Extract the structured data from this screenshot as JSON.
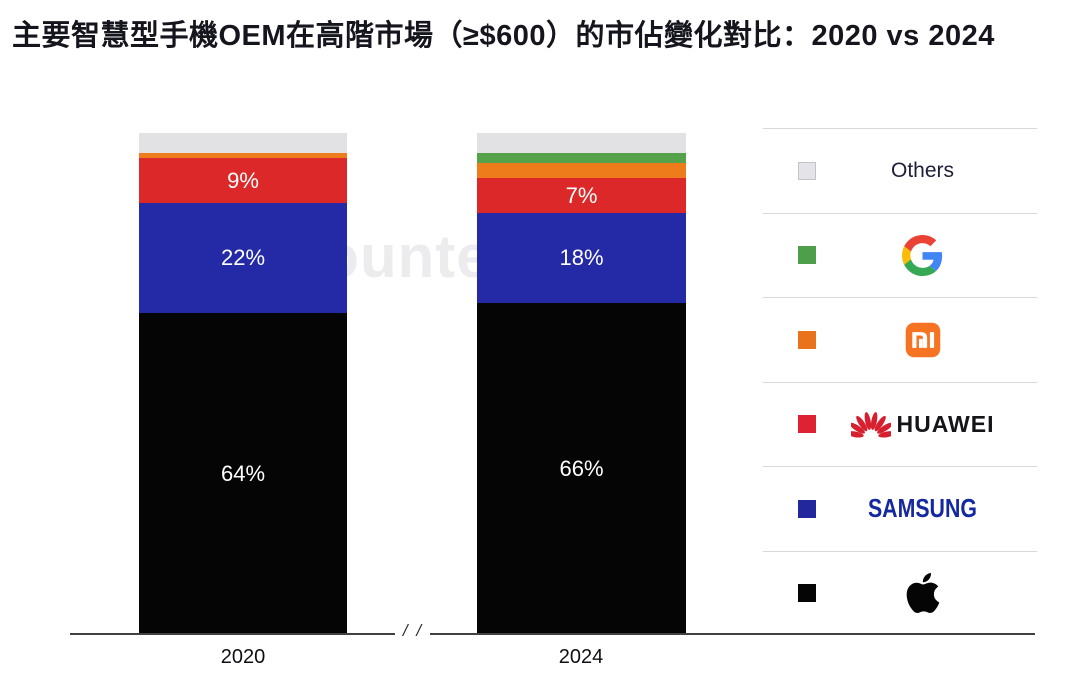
{
  "title": "主要智慧型手機OEM在高階市場（≥$600）的市佔變化對比：2020 vs 2024",
  "watermark": "Counterpoint",
  "axis": {
    "break_label": "/ /"
  },
  "chart_data": {
    "type": "bar",
    "stacked": true,
    "unit": "%",
    "title": "主要智慧型手機OEM在高階市場（≥$600）的市佔變化對比：2020 vs 2024",
    "categories": [
      "2020",
      "2024"
    ],
    "ylim": [
      0,
      100
    ],
    "grid": false,
    "legend_position": "right",
    "series_top_to_bottom": [
      {
        "name": "Others",
        "color": "#e2e2e4",
        "values": [
          4,
          4
        ],
        "labels": [
          "",
          ""
        ]
      },
      {
        "name": "Google",
        "color": "#56a24b",
        "values": [
          0,
          2
        ],
        "labels": [
          "",
          ""
        ]
      },
      {
        "name": "Xiaomi",
        "color": "#ee7c1b",
        "values": [
          1,
          3
        ],
        "labels": [
          "",
          ""
        ]
      },
      {
        "name": "Huawei",
        "color": "#dc2828",
        "values": [
          9,
          7
        ],
        "labels": [
          "9%",
          "7%"
        ]
      },
      {
        "name": "Samsung",
        "color": "#2429a5",
        "values": [
          22,
          18
        ],
        "labels": [
          "22%",
          "18%"
        ]
      },
      {
        "name": "Apple",
        "color": "#050505",
        "values": [
          64,
          66
        ],
        "labels": [
          "64%",
          "66%"
        ]
      }
    ]
  },
  "legend": {
    "items": [
      {
        "name": "Others",
        "swatch": "#e4e4e8",
        "label": "Others"
      },
      {
        "name": "Google",
        "swatch": "#4f9e4c",
        "label": "Google"
      },
      {
        "name": "Xiaomi",
        "swatch": "#e9721c",
        "label": "Xiaomi"
      },
      {
        "name": "Huawei",
        "swatch": "#dd2233",
        "label": "HUAWEI"
      },
      {
        "name": "Samsung",
        "swatch": "#23279c",
        "label": "SAMSUNG"
      },
      {
        "name": "Apple",
        "swatch": "#050505",
        "label": "Apple"
      }
    ]
  }
}
